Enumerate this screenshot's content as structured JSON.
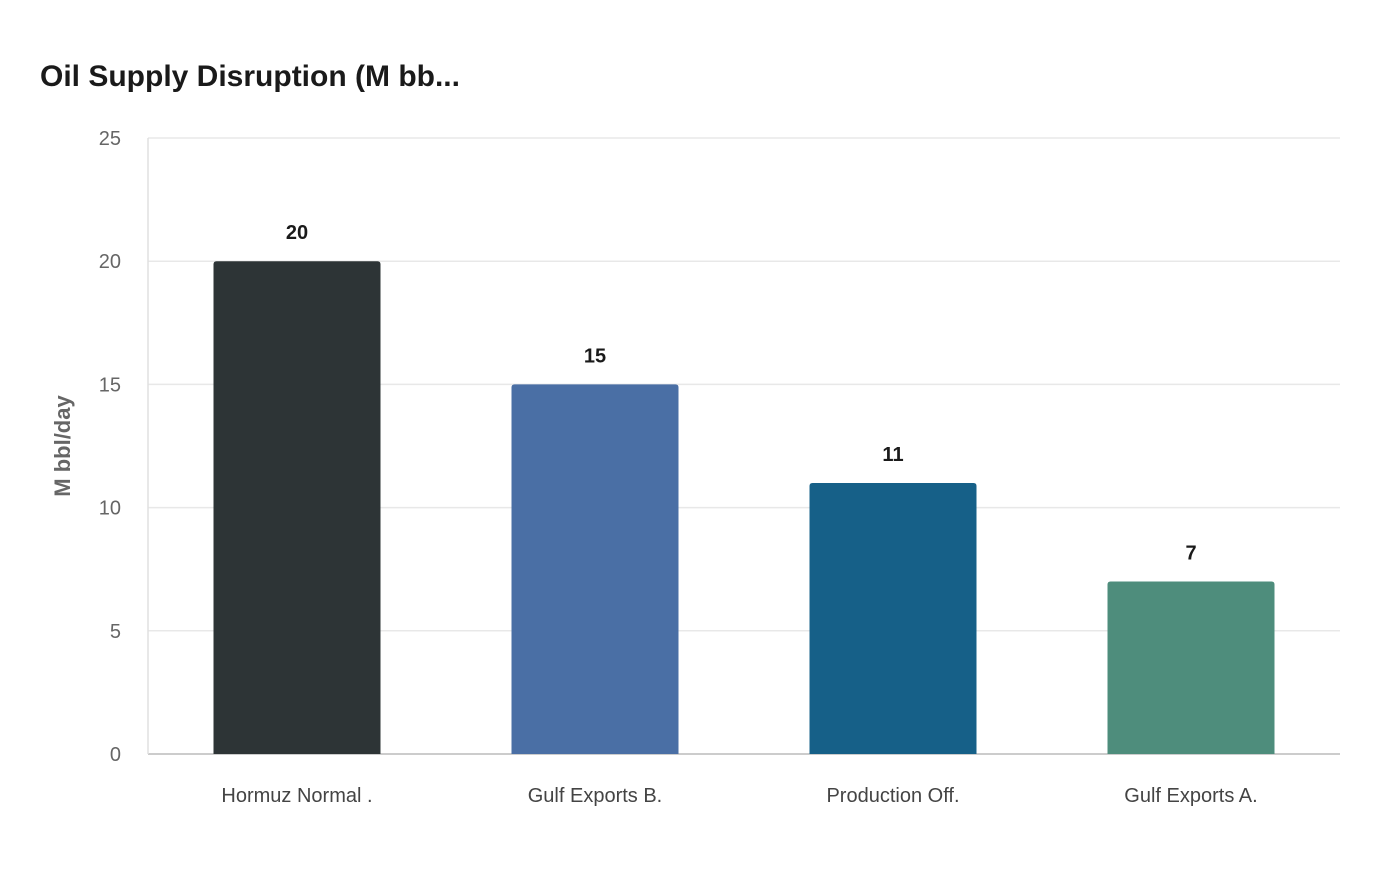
{
  "chart_data": {
    "type": "bar",
    "title": "Oil Supply Disruption (M bb...",
    "xlabel": "",
    "ylabel": "M bbl/day",
    "categories": [
      "Hormuz Normal .",
      "Gulf Exports B.",
      "Production Off.",
      "Gulf Exports A."
    ],
    "values": [
      20,
      15,
      11,
      7
    ],
    "colors": [
      "#2d3436",
      "#4a6fa5",
      "#166088",
      "#4e8d7c"
    ],
    "ylim": [
      0,
      25
    ],
    "yticks": [
      0,
      5,
      10,
      15,
      20,
      25
    ],
    "grid": true,
    "legend": "none"
  }
}
